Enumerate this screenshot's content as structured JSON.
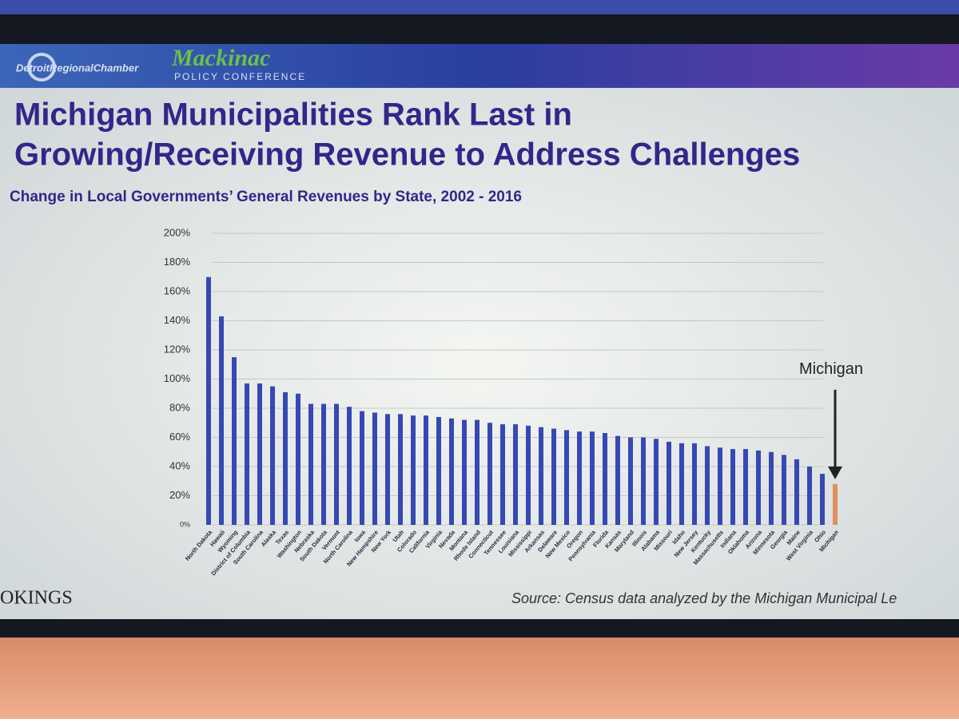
{
  "header": {
    "organization": "DetroitRegionalChamber",
    "conference": "Mackinac",
    "conference_subtitle": "POLICY CONFERENCE"
  },
  "chart_data": {
    "type": "bar",
    "title": [
      "Michigan Municipalities Rank Last in",
      "Growing/Receiving Revenue to Address Challenges"
    ],
    "subtitle": "Change in Local Governments’ General Revenues by State, 2002 - 2016",
    "annotation": "Michigan",
    "categories": [
      "North Dakota",
      "Hawaii",
      "Wyoming",
      "District of Columbia",
      "South Carolina",
      "Alaska",
      "Texas",
      "Washington",
      "Nebraska",
      "South Dakota",
      "Vermont",
      "North Carolina",
      "Iowa",
      "New Hampshire",
      "New York",
      "Utah",
      "Colorado",
      "California",
      "Virginia",
      "Nevada",
      "Montana",
      "Rhode Island",
      "Connecticut",
      "Tennessee",
      "Louisiana",
      "Mississippi",
      "Arkansas",
      "Delaware",
      "New Mexico",
      "Oregon",
      "Pennsylvania",
      "Florida",
      "Kansas",
      "Maryland",
      "Illinois",
      "Alabama",
      "Missouri",
      "Idaho",
      "New Jersey",
      "Kentucky",
      "Massachusetts",
      "Indiana",
      "Oklahoma",
      "Arizona",
      "Minnesota",
      "Georgia",
      "Maine",
      "West Virginia",
      "Ohio",
      "Michigan"
    ],
    "values": [
      170,
      143,
      115,
      97,
      97,
      95,
      91,
      90,
      83,
      83,
      83,
      81,
      78,
      77,
      76,
      76,
      75,
      75,
      74,
      73,
      72,
      72,
      70,
      69,
      69,
      68,
      67,
      66,
      65,
      64,
      64,
      63,
      61,
      60,
      60,
      59,
      57,
      56,
      56,
      54,
      53,
      52,
      52,
      51,
      50,
      48,
      45,
      40,
      35,
      28
    ],
    "colors": [
      "#3648b4",
      "#3648b4",
      "#3648b4",
      "#3648b4",
      "#3648b4",
      "#3648b4",
      "#3648b4",
      "#3648b4",
      "#3648b4",
      "#3648b4",
      "#3648b4",
      "#3648b4",
      "#3648b4",
      "#3648b4",
      "#3648b4",
      "#3648b4",
      "#3648b4",
      "#3648b4",
      "#3648b4",
      "#3648b4",
      "#3648b4",
      "#3648b4",
      "#3648b4",
      "#3648b4",
      "#3648b4",
      "#3648b4",
      "#3648b4",
      "#3648b4",
      "#3648b4",
      "#3648b4",
      "#3648b4",
      "#3648b4",
      "#3648b4",
      "#3648b4",
      "#3648b4",
      "#3648b4",
      "#3648b4",
      "#3648b4",
      "#3648b4",
      "#3648b4",
      "#3648b4",
      "#3648b4",
      "#3648b4",
      "#3648b4",
      "#3648b4",
      "#3648b4",
      "#3648b4",
      "#3648b4",
      "#3648b4",
      "#e0905a"
    ],
    "ylim": [
      0,
      200
    ],
    "yticks": [
      {
        "value": 0,
        "label": "0%"
      },
      {
        "value": 20,
        "label": "20%"
      },
      {
        "value": 40,
        "label": "40%"
      },
      {
        "value": 60,
        "label": "60%"
      },
      {
        "value": 80,
        "label": "80%"
      },
      {
        "value": 100,
        "label": "100%"
      },
      {
        "value": 120,
        "label": "120%"
      },
      {
        "value": 140,
        "label": "140%"
      },
      {
        "value": 160,
        "label": "160%"
      },
      {
        "value": 180,
        "label": "180%"
      },
      {
        "value": 200,
        "label": "200%"
      }
    ],
    "grid": true
  },
  "footer": {
    "logo": "OKINGS",
    "source": "Source: Census data analyzed by the Michigan Municipal Le"
  }
}
